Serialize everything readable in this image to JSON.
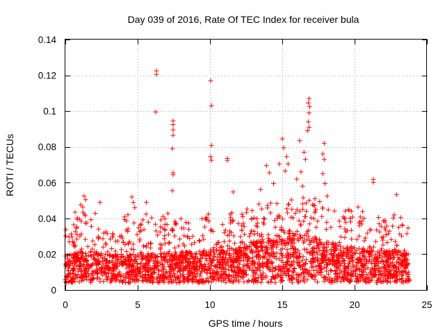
{
  "chart_data": {
    "type": "scatter",
    "title": "Day 039 of 2016, Rate Of TEC Index for receiver bula",
    "xlabel": "GPS time / hours",
    "ylabel": "ROTI / TECUs",
    "xlim": [
      0,
      25
    ],
    "ylim": [
      0,
      0.14
    ],
    "x_ticks": [
      0,
      5,
      10,
      15,
      20,
      25
    ],
    "x_tick_labels": [
      "0",
      "5",
      "10",
      "15",
      "20",
      "25"
    ],
    "y_ticks": [
      0,
      0.02,
      0.04,
      0.06,
      0.08,
      0.1,
      0.12,
      0.14
    ],
    "y_tick_labels": [
      "0",
      "0.02",
      "0.04",
      "0.06",
      "0.08",
      "0.1",
      "0.12",
      "0.14"
    ],
    "grid": true,
    "marker": "+",
    "series_color": "#ff0000",
    "density_note": "dense band of points between roughly 0.005 and 0.045 across 0-23.8 h",
    "density_profile": [
      [
        0.0,
        0.012,
        0.03
      ],
      [
        1.0,
        0.013,
        0.04
      ],
      [
        2.0,
        0.013,
        0.036
      ],
      [
        3.0,
        0.012,
        0.03
      ],
      [
        4.0,
        0.012,
        0.034
      ],
      [
        5.0,
        0.012,
        0.036
      ],
      [
        6.0,
        0.012,
        0.034
      ],
      [
        7.0,
        0.013,
        0.036
      ],
      [
        8.0,
        0.013,
        0.032
      ],
      [
        9.0,
        0.013,
        0.034
      ],
      [
        10.0,
        0.013,
        0.036
      ],
      [
        11.0,
        0.014,
        0.036
      ],
      [
        12.0,
        0.015,
        0.036
      ],
      [
        13.0,
        0.017,
        0.04
      ],
      [
        14.0,
        0.018,
        0.045
      ],
      [
        15.0,
        0.02,
        0.05
      ],
      [
        16.0,
        0.02,
        0.048
      ],
      [
        17.0,
        0.019,
        0.045
      ],
      [
        18.0,
        0.017,
        0.04
      ],
      [
        19.0,
        0.015,
        0.036
      ],
      [
        20.0,
        0.015,
        0.04
      ],
      [
        21.0,
        0.014,
        0.034
      ],
      [
        22.0,
        0.014,
        0.034
      ],
      [
        23.0,
        0.013,
        0.034
      ],
      [
        23.8,
        0.012,
        0.03
      ]
    ],
    "outliers": [
      [
        6.3,
        0.1225
      ],
      [
        6.3,
        0.1205
      ],
      [
        6.25,
        0.0995
      ],
      [
        10.05,
        0.117
      ],
      [
        10.1,
        0.103
      ],
      [
        10.1,
        0.0808
      ],
      [
        10.05,
        0.0745
      ],
      [
        10.1,
        0.0725
      ],
      [
        7.45,
        0.0945
      ],
      [
        7.45,
        0.0925
      ],
      [
        7.45,
        0.0895
      ],
      [
        7.45,
        0.0865
      ],
      [
        7.4,
        0.079
      ],
      [
        7.45,
        0.0655
      ],
      [
        7.45,
        0.0645
      ],
      [
        7.4,
        0.0555
      ],
      [
        11.2,
        0.0735
      ],
      [
        11.2,
        0.0725
      ],
      [
        11.6,
        0.0548
      ],
      [
        16.85,
        0.107
      ],
      [
        16.8,
        0.1045
      ],
      [
        16.9,
        0.1025
      ],
      [
        16.85,
        0.099
      ],
      [
        16.8,
        0.094
      ],
      [
        16.85,
        0.091
      ],
      [
        16.75,
        0.089
      ],
      [
        15.0,
        0.0845
      ],
      [
        15.1,
        0.0795
      ],
      [
        14.8,
        0.0705
      ],
      [
        15.3,
        0.0745
      ],
      [
        15.4,
        0.0705
      ],
      [
        15.2,
        0.0665
      ],
      [
        16.2,
        0.0835
      ],
      [
        16.5,
        0.077
      ],
      [
        16.6,
        0.073
      ],
      [
        16.3,
        0.066
      ],
      [
        16.0,
        0.062
      ],
      [
        16.4,
        0.058
      ],
      [
        17.9,
        0.082
      ],
      [
        17.8,
        0.076
      ],
      [
        17.9,
        0.073
      ],
      [
        17.8,
        0.065
      ],
      [
        17.95,
        0.0595
      ],
      [
        18.1,
        0.0525
      ],
      [
        13.9,
        0.0695
      ],
      [
        14.1,
        0.0655
      ],
      [
        14.4,
        0.0595
      ],
      [
        13.5,
        0.0562
      ],
      [
        21.3,
        0.0618
      ],
      [
        21.3,
        0.0602
      ],
      [
        22.9,
        0.0533
      ],
      [
        1.3,
        0.0525
      ],
      [
        1.4,
        0.0505
      ],
      [
        2.4,
        0.049
      ],
      [
        4.6,
        0.052
      ],
      [
        4.7,
        0.049
      ],
      [
        5.6,
        0.049
      ],
      [
        4.8,
        0.046
      ]
    ]
  }
}
